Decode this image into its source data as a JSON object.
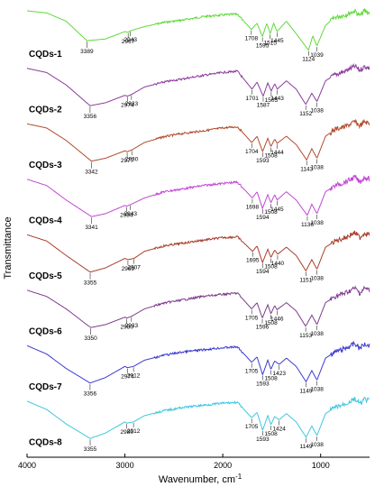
{
  "chart_data": {
    "type": "line",
    "title": "",
    "xlabel": "Wavenumber, cm",
    "xlabel_sup": "-1",
    "ylabel": "Transmittance",
    "xlim": [
      4000,
      500
    ],
    "x_reversed": true,
    "x_ticks": [
      4000,
      3000,
      2000,
      1000
    ],
    "grid": false,
    "stacked_offset": true,
    "series": [
      {
        "name": "CQDs-1",
        "color": "#5fd93a",
        "profile": [
          [
            4000,
            0.0
          ],
          [
            3800,
            0.05
          ],
          [
            3600,
            0.25
          ],
          [
            3389,
            0.72
          ],
          [
            3200,
            0.68
          ],
          [
            3000,
            0.5
          ],
          [
            2967,
            0.52
          ],
          [
            2943,
            0.48
          ],
          [
            2800,
            0.38
          ],
          [
            2600,
            0.28
          ],
          [
            2400,
            0.22
          ],
          [
            2200,
            0.14
          ],
          [
            2000,
            0.1
          ],
          [
            1850,
            0.08
          ],
          [
            1708,
            0.45
          ],
          [
            1650,
            0.3
          ],
          [
            1595,
            0.62
          ],
          [
            1550,
            0.3
          ],
          [
            1515,
            0.55
          ],
          [
            1480,
            0.3
          ],
          [
            1445,
            0.5
          ],
          [
            1350,
            0.25
          ],
          [
            1250,
            0.55
          ],
          [
            1124,
            0.95
          ],
          [
            1080,
            0.6
          ],
          [
            1039,
            0.85
          ],
          [
            950,
            0.35
          ],
          [
            850,
            0.15
          ],
          [
            750,
            0.1
          ],
          [
            650,
            0.0
          ],
          [
            600,
            0.12
          ],
          [
            550,
            0.0
          ],
          [
            500,
            0.05
          ]
        ],
        "peaks": [
          3389,
          2967,
          2943,
          1708,
          1595,
          1515,
          1445,
          1124,
          1039
        ]
      },
      {
        "name": "CQDs-2",
        "color": "#8b3a9a",
        "profile": [
          [
            4000,
            0.05
          ],
          [
            3800,
            0.15
          ],
          [
            3600,
            0.45
          ],
          [
            3356,
            0.95
          ],
          [
            3200,
            0.88
          ],
          [
            3000,
            0.7
          ],
          [
            2974,
            0.72
          ],
          [
            2933,
            0.68
          ],
          [
            2800,
            0.5
          ],
          [
            2600,
            0.38
          ],
          [
            2400,
            0.3
          ],
          [
            2200,
            0.22
          ],
          [
            2000,
            0.15
          ],
          [
            1850,
            0.12
          ],
          [
            1701,
            0.55
          ],
          [
            1650,
            0.38
          ],
          [
            1587,
            0.72
          ],
          [
            1540,
            0.4
          ],
          [
            1505,
            0.6
          ],
          [
            1470,
            0.42
          ],
          [
            1443,
            0.55
          ],
          [
            1350,
            0.35
          ],
          [
            1250,
            0.55
          ],
          [
            1152,
            0.92
          ],
          [
            1090,
            0.65
          ],
          [
            1038,
            0.85
          ],
          [
            950,
            0.35
          ],
          [
            850,
            0.2
          ],
          [
            750,
            0.12
          ],
          [
            650,
            0.0
          ],
          [
            600,
            0.1
          ],
          [
            550,
            0.0
          ],
          [
            500,
            0.05
          ]
        ],
        "peaks": [
          3356,
          2974,
          2933,
          1701,
          1587,
          1505,
          1443,
          1152,
          1038
        ]
      },
      {
        "name": "CQDs-3",
        "color": "#b04a2c",
        "profile": [
          [
            4000,
            0.05
          ],
          [
            3800,
            0.15
          ],
          [
            3600,
            0.45
          ],
          [
            3342,
            0.95
          ],
          [
            3200,
            0.88
          ],
          [
            3000,
            0.7
          ],
          [
            2977,
            0.72
          ],
          [
            2930,
            0.68
          ],
          [
            2800,
            0.5
          ],
          [
            2600,
            0.36
          ],
          [
            2400,
            0.28
          ],
          [
            2200,
            0.22
          ],
          [
            2000,
            0.15
          ],
          [
            1850,
            0.12
          ],
          [
            1704,
            0.5
          ],
          [
            1650,
            0.35
          ],
          [
            1593,
            0.72
          ],
          [
            1540,
            0.4
          ],
          [
            1508,
            0.6
          ],
          [
            1470,
            0.42
          ],
          [
            1444,
            0.52
          ],
          [
            1350,
            0.35
          ],
          [
            1250,
            0.55
          ],
          [
            1143,
            0.92
          ],
          [
            1090,
            0.65
          ],
          [
            1038,
            0.88
          ],
          [
            950,
            0.35
          ],
          [
            850,
            0.18
          ],
          [
            750,
            0.12
          ],
          [
            650,
            0.0
          ],
          [
            600,
            0.1
          ],
          [
            550,
            0.0
          ],
          [
            500,
            0.05
          ]
        ],
        "peaks": [
          3342,
          2977,
          2930,
          1704,
          1593,
          1508,
          1444,
          1143,
          1038
        ]
      },
      {
        "name": "CQDs-4",
        "color": "#c245d6",
        "profile": [
          [
            4000,
            0.05
          ],
          [
            3800,
            0.2
          ],
          [
            3600,
            0.55
          ],
          [
            3341,
            0.95
          ],
          [
            3200,
            0.88
          ],
          [
            3000,
            0.68
          ],
          [
            2984,
            0.7
          ],
          [
            2943,
            0.66
          ],
          [
            2800,
            0.5
          ],
          [
            2600,
            0.35
          ],
          [
            2400,
            0.28
          ],
          [
            2200,
            0.2
          ],
          [
            2000,
            0.15
          ],
          [
            1850,
            0.12
          ],
          [
            1698,
            0.5
          ],
          [
            1650,
            0.35
          ],
          [
            1594,
            0.75
          ],
          [
            1540,
            0.42
          ],
          [
            1508,
            0.62
          ],
          [
            1470,
            0.42
          ],
          [
            1445,
            0.55
          ],
          [
            1350,
            0.35
          ],
          [
            1250,
            0.55
          ],
          [
            1136,
            0.92
          ],
          [
            1090,
            0.65
          ],
          [
            1038,
            0.88
          ],
          [
            950,
            0.35
          ],
          [
            850,
            0.2
          ],
          [
            750,
            0.12
          ],
          [
            650,
            0.0
          ],
          [
            600,
            0.12
          ],
          [
            550,
            0.0
          ],
          [
            500,
            0.05
          ]
        ],
        "peaks": [
          3341,
          2984,
          2943,
          1698,
          1594,
          1508,
          1445,
          1136,
          1038
        ]
      },
      {
        "name": "CQDs-5",
        "color": "#a83d2a",
        "profile": [
          [
            4000,
            0.05
          ],
          [
            3800,
            0.2
          ],
          [
            3600,
            0.55
          ],
          [
            3355,
            0.95
          ],
          [
            3200,
            0.85
          ],
          [
            3000,
            0.62
          ],
          [
            2969,
            0.65
          ],
          [
            2907,
            0.62
          ],
          [
            2800,
            0.45
          ],
          [
            2600,
            0.32
          ],
          [
            2400,
            0.25
          ],
          [
            2200,
            0.18
          ],
          [
            2000,
            0.12
          ],
          [
            1850,
            0.1
          ],
          [
            1695,
            0.45
          ],
          [
            1650,
            0.32
          ],
          [
            1594,
            0.72
          ],
          [
            1540,
            0.4
          ],
          [
            1508,
            0.6
          ],
          [
            1470,
            0.42
          ],
          [
            1440,
            0.52
          ],
          [
            1350,
            0.35
          ],
          [
            1250,
            0.55
          ],
          [
            1151,
            0.92
          ],
          [
            1090,
            0.65
          ],
          [
            1038,
            0.88
          ],
          [
            950,
            0.35
          ],
          [
            850,
            0.2
          ],
          [
            750,
            0.12
          ],
          [
            650,
            0.0
          ],
          [
            600,
            0.12
          ],
          [
            550,
            0.0
          ],
          [
            500,
            0.05
          ]
        ],
        "peaks": [
          3355,
          2969,
          2907,
          1695,
          1594,
          1508,
          1440,
          1151,
          1038
        ]
      },
      {
        "name": "CQDs-6",
        "color": "#7d3a8c",
        "profile": [
          [
            4000,
            0.05
          ],
          [
            3800,
            0.2
          ],
          [
            3600,
            0.5
          ],
          [
            3350,
            0.95
          ],
          [
            3200,
            0.88
          ],
          [
            3000,
            0.7
          ],
          [
            2980,
            0.72
          ],
          [
            2933,
            0.68
          ],
          [
            2800,
            0.5
          ],
          [
            2600,
            0.36
          ],
          [
            2400,
            0.28
          ],
          [
            2200,
            0.2
          ],
          [
            2000,
            0.15
          ],
          [
            1850,
            0.12
          ],
          [
            1705,
            0.5
          ],
          [
            1650,
            0.35
          ],
          [
            1596,
            0.72
          ],
          [
            1540,
            0.4
          ],
          [
            1508,
            0.62
          ],
          [
            1470,
            0.42
          ],
          [
            1446,
            0.52
          ],
          [
            1350,
            0.35
          ],
          [
            1250,
            0.55
          ],
          [
            1153,
            0.92
          ],
          [
            1090,
            0.65
          ],
          [
            1038,
            0.88
          ],
          [
            950,
            0.35
          ],
          [
            850,
            0.2
          ],
          [
            750,
            0.12
          ],
          [
            650,
            0.0
          ],
          [
            600,
            0.12
          ],
          [
            550,
            0.0
          ],
          [
            500,
            0.05
          ]
        ],
        "peaks": [
          3350,
          2980,
          2933,
          1705,
          1596,
          1508,
          1446,
          1153,
          1038
        ]
      },
      {
        "name": "CQDs-7",
        "color": "#3a3ad0",
        "profile": [
          [
            4000,
            0.05
          ],
          [
            3800,
            0.25
          ],
          [
            3600,
            0.6
          ],
          [
            3356,
            0.95
          ],
          [
            3200,
            0.82
          ],
          [
            3000,
            0.55
          ],
          [
            2974,
            0.58
          ],
          [
            2912,
            0.55
          ],
          [
            2800,
            0.4
          ],
          [
            2600,
            0.28
          ],
          [
            2400,
            0.2
          ],
          [
            2200,
            0.15
          ],
          [
            2000,
            0.1
          ],
          [
            1850,
            0.08
          ],
          [
            1705,
            0.45
          ],
          [
            1650,
            0.32
          ],
          [
            1593,
            0.75
          ],
          [
            1540,
            0.4
          ],
          [
            1508,
            0.62
          ],
          [
            1470,
            0.42
          ],
          [
            1423,
            0.5
          ],
          [
            1350,
            0.35
          ],
          [
            1250,
            0.55
          ],
          [
            1149,
            0.92
          ],
          [
            1090,
            0.65
          ],
          [
            1038,
            0.88
          ],
          [
            950,
            0.35
          ],
          [
            850,
            0.2
          ],
          [
            750,
            0.12
          ],
          [
            650,
            0.0
          ],
          [
            600,
            0.12
          ],
          [
            550,
            0.0
          ],
          [
            500,
            0.05
          ]
        ],
        "peaks": [
          3356,
          2974,
          2912,
          1705,
          1593,
          1508,
          1423,
          1149,
          1038
        ]
      },
      {
        "name": "CQDs-8",
        "color": "#3cc6e0",
        "profile": [
          [
            4000,
            0.05
          ],
          [
            3800,
            0.25
          ],
          [
            3600,
            0.6
          ],
          [
            3355,
            0.95
          ],
          [
            3200,
            0.82
          ],
          [
            3000,
            0.55
          ],
          [
            2980,
            0.58
          ],
          [
            2912,
            0.55
          ],
          [
            2800,
            0.4
          ],
          [
            2600,
            0.28
          ],
          [
            2400,
            0.2
          ],
          [
            2200,
            0.15
          ],
          [
            2000,
            0.1
          ],
          [
            1850,
            0.08
          ],
          [
            1705,
            0.45
          ],
          [
            1650,
            0.32
          ],
          [
            1593,
            0.75
          ],
          [
            1540,
            0.4
          ],
          [
            1508,
            0.62
          ],
          [
            1470,
            0.42
          ],
          [
            1424,
            0.5
          ],
          [
            1350,
            0.35
          ],
          [
            1250,
            0.55
          ],
          [
            1149,
            0.92
          ],
          [
            1090,
            0.65
          ],
          [
            1038,
            0.88
          ],
          [
            950,
            0.35
          ],
          [
            850,
            0.2
          ],
          [
            750,
            0.12
          ],
          [
            650,
            0.0
          ],
          [
            600,
            0.12
          ],
          [
            550,
            0.0
          ],
          [
            500,
            0.05
          ]
        ],
        "peaks": [
          3355,
          2980,
          2912,
          1705,
          1593,
          1508,
          1424,
          1149,
          1038
        ]
      }
    ]
  }
}
